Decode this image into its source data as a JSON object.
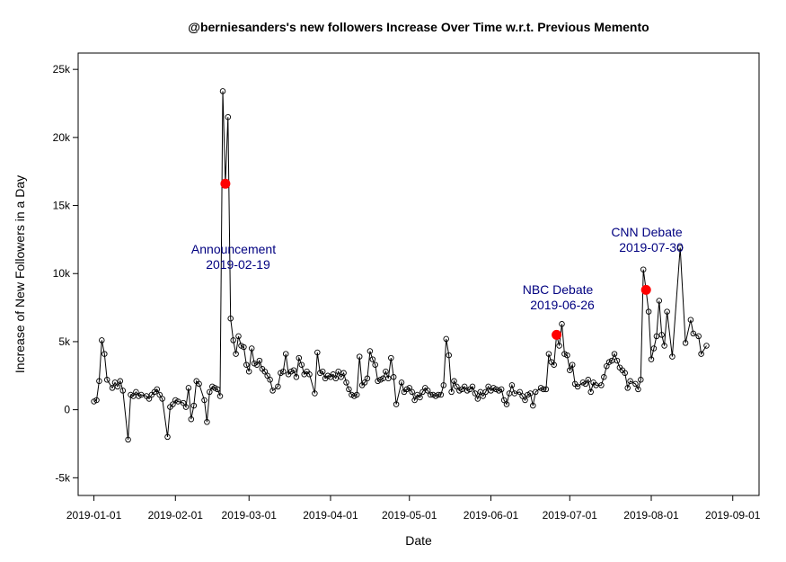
{
  "chart_data": {
    "type": "line",
    "title": "@berniesanders's new followers Increase Over Time w.r.t. Previous Memento",
    "xlabel": "Date",
    "ylabel": "Increase of New Followers in a Day",
    "x_tick_labels": [
      "2019-01-01",
      "2019-02-01",
      "2019-03-01",
      "2019-04-01",
      "2019-05-01",
      "2019-06-01",
      "2019-07-01",
      "2019-08-01",
      "2019-09-01"
    ],
    "y_tick_values": [
      -5000,
      0,
      5000,
      10000,
      15000,
      20000,
      25000
    ],
    "y_tick_labels": [
      "-5k",
      "0",
      "5k",
      "10k",
      "15k",
      "20k",
      "25k"
    ],
    "xlim": [
      "2018-12-26",
      "2019-09-11"
    ],
    "ylim": [
      -6300,
      26200
    ],
    "grid": false,
    "series": [
      {
        "marker": "open-circle",
        "line_color": "#000000",
        "points": [
          {
            "x": "2019-01-01",
            "y": 600
          },
          {
            "x": "2019-01-02",
            "y": 700
          },
          {
            "x": "2019-01-03",
            "y": 2100
          },
          {
            "x": "2019-01-04",
            "y": 5100
          },
          {
            "x": "2019-01-05",
            "y": 4100
          },
          {
            "x": "2019-01-06",
            "y": 2200
          },
          {
            "x": "2019-01-08",
            "y": 1600
          },
          {
            "x": "2019-01-09",
            "y": 2000
          },
          {
            "x": "2019-01-10",
            "y": 1700
          },
          {
            "x": "2019-01-11",
            "y": 2100
          },
          {
            "x": "2019-01-12",
            "y": 1400
          },
          {
            "x": "2019-01-14",
            "y": -2200
          },
          {
            "x": "2019-01-15",
            "y": 1100
          },
          {
            "x": "2019-01-16",
            "y": 1000
          },
          {
            "x": "2019-01-17",
            "y": 1300
          },
          {
            "x": "2019-01-18",
            "y": 1000
          },
          {
            "x": "2019-01-19",
            "y": 1100
          },
          {
            "x": "2019-01-21",
            "y": 1000
          },
          {
            "x": "2019-01-22",
            "y": 800
          },
          {
            "x": "2019-01-23",
            "y": 1100
          },
          {
            "x": "2019-01-24",
            "y": 1300
          },
          {
            "x": "2019-01-25",
            "y": 1500
          },
          {
            "x": "2019-01-26",
            "y": 1100
          },
          {
            "x": "2019-01-27",
            "y": 800
          },
          {
            "x": "2019-01-29",
            "y": -2000
          },
          {
            "x": "2019-01-30",
            "y": 200
          },
          {
            "x": "2019-01-31",
            "y": 400
          },
          {
            "x": "2019-02-01",
            "y": 700
          },
          {
            "x": "2019-02-02",
            "y": 600
          },
          {
            "x": "2019-02-04",
            "y": 500
          },
          {
            "x": "2019-02-05",
            "y": 200
          },
          {
            "x": "2019-02-06",
            "y": 1600
          },
          {
            "x": "2019-02-07",
            "y": -700
          },
          {
            "x": "2019-02-08",
            "y": 300
          },
          {
            "x": "2019-02-09",
            "y": 2100
          },
          {
            "x": "2019-02-10",
            "y": 1900
          },
          {
            "x": "2019-02-12",
            "y": 700
          },
          {
            "x": "2019-02-13",
            "y": -900
          },
          {
            "x": "2019-02-14",
            "y": 1300
          },
          {
            "x": "2019-02-15",
            "y": 1700
          },
          {
            "x": "2019-02-16",
            "y": 1600
          },
          {
            "x": "2019-02-17",
            "y": 1500
          },
          {
            "x": "2019-02-18",
            "y": 1000
          },
          {
            "x": "2019-02-19",
            "y": 23400
          },
          {
            "x": "2019-02-20",
            "y": 16600
          },
          {
            "x": "2019-02-21",
            "y": 21500
          },
          {
            "x": "2019-02-22",
            "y": 6700
          },
          {
            "x": "2019-02-23",
            "y": 5100
          },
          {
            "x": "2019-02-24",
            "y": 4100
          },
          {
            "x": "2019-02-25",
            "y": 5400
          },
          {
            "x": "2019-02-26",
            "y": 4700
          },
          {
            "x": "2019-02-27",
            "y": 4600
          },
          {
            "x": "2019-02-28",
            "y": 3300
          },
          {
            "x": "2019-03-01",
            "y": 2800
          },
          {
            "x": "2019-03-02",
            "y": 4500
          },
          {
            "x": "2019-03-03",
            "y": 3400
          },
          {
            "x": "2019-03-04",
            "y": 3300
          },
          {
            "x": "2019-03-05",
            "y": 3600
          },
          {
            "x": "2019-03-06",
            "y": 3000
          },
          {
            "x": "2019-03-07",
            "y": 2800
          },
          {
            "x": "2019-03-08",
            "y": 2500
          },
          {
            "x": "2019-03-09",
            "y": 2200
          },
          {
            "x": "2019-03-10",
            "y": 1400
          },
          {
            "x": "2019-03-12",
            "y": 1700
          },
          {
            "x": "2019-03-13",
            "y": 2700
          },
          {
            "x": "2019-03-14",
            "y": 2800
          },
          {
            "x": "2019-03-15",
            "y": 4100
          },
          {
            "x": "2019-03-16",
            "y": 2600
          },
          {
            "x": "2019-03-17",
            "y": 2800
          },
          {
            "x": "2019-03-18",
            "y": 2900
          },
          {
            "x": "2019-03-19",
            "y": 2400
          },
          {
            "x": "2019-03-20",
            "y": 3800
          },
          {
            "x": "2019-03-21",
            "y": 3300
          },
          {
            "x": "2019-03-22",
            "y": 2600
          },
          {
            "x": "2019-03-23",
            "y": 2800
          },
          {
            "x": "2019-03-24",
            "y": 2600
          },
          {
            "x": "2019-03-26",
            "y": 1200
          },
          {
            "x": "2019-03-27",
            "y": 4200
          },
          {
            "x": "2019-03-28",
            "y": 2700
          },
          {
            "x": "2019-03-29",
            "y": 2800
          },
          {
            "x": "2019-03-30",
            "y": 2300
          },
          {
            "x": "2019-03-31",
            "y": 2500
          },
          {
            "x": "2019-04-01",
            "y": 2400
          },
          {
            "x": "2019-04-02",
            "y": 2600
          },
          {
            "x": "2019-04-03",
            "y": 2300
          },
          {
            "x": "2019-04-04",
            "y": 2800
          },
          {
            "x": "2019-04-05",
            "y": 2400
          },
          {
            "x": "2019-04-06",
            "y": 2700
          },
          {
            "x": "2019-04-07",
            "y": 2000
          },
          {
            "x": "2019-04-08",
            "y": 1500
          },
          {
            "x": "2019-04-09",
            "y": 1100
          },
          {
            "x": "2019-04-10",
            "y": 1000
          },
          {
            "x": "2019-04-11",
            "y": 1100
          },
          {
            "x": "2019-04-12",
            "y": 3900
          },
          {
            "x": "2019-04-13",
            "y": 1800
          },
          {
            "x": "2019-04-14",
            "y": 2000
          },
          {
            "x": "2019-04-15",
            "y": 2300
          },
          {
            "x": "2019-04-16",
            "y": 4300
          },
          {
            "x": "2019-04-17",
            "y": 3700
          },
          {
            "x": "2019-04-18",
            "y": 3300
          },
          {
            "x": "2019-04-19",
            "y": 2100
          },
          {
            "x": "2019-04-20",
            "y": 2200
          },
          {
            "x": "2019-04-21",
            "y": 2300
          },
          {
            "x": "2019-04-22",
            "y": 2800
          },
          {
            "x": "2019-04-23",
            "y": 2300
          },
          {
            "x": "2019-04-24",
            "y": 3800
          },
          {
            "x": "2019-04-25",
            "y": 2400
          },
          {
            "x": "2019-04-26",
            "y": 400
          },
          {
            "x": "2019-04-28",
            "y": 2000
          },
          {
            "x": "2019-04-29",
            "y": 1300
          },
          {
            "x": "2019-04-30",
            "y": 1500
          },
          {
            "x": "2019-05-01",
            "y": 1600
          },
          {
            "x": "2019-05-02",
            "y": 1300
          },
          {
            "x": "2019-05-03",
            "y": 700
          },
          {
            "x": "2019-05-04",
            "y": 1100
          },
          {
            "x": "2019-05-05",
            "y": 900
          },
          {
            "x": "2019-05-06",
            "y": 1300
          },
          {
            "x": "2019-05-07",
            "y": 1600
          },
          {
            "x": "2019-05-08",
            "y": 1400
          },
          {
            "x": "2019-05-09",
            "y": 1100
          },
          {
            "x": "2019-05-10",
            "y": 1100
          },
          {
            "x": "2019-05-11",
            "y": 1000
          },
          {
            "x": "2019-05-12",
            "y": 1100
          },
          {
            "x": "2019-05-13",
            "y": 1100
          },
          {
            "x": "2019-05-14",
            "y": 1800
          },
          {
            "x": "2019-05-15",
            "y": 5200
          },
          {
            "x": "2019-05-16",
            "y": 4000
          },
          {
            "x": "2019-05-17",
            "y": 1300
          },
          {
            "x": "2019-05-18",
            "y": 2100
          },
          {
            "x": "2019-05-19",
            "y": 1700
          },
          {
            "x": "2019-05-20",
            "y": 1400
          },
          {
            "x": "2019-05-21",
            "y": 1500
          },
          {
            "x": "2019-05-22",
            "y": 1700
          },
          {
            "x": "2019-05-23",
            "y": 1400
          },
          {
            "x": "2019-05-24",
            "y": 1500
          },
          {
            "x": "2019-05-25",
            "y": 1700
          },
          {
            "x": "2019-05-26",
            "y": 1200
          },
          {
            "x": "2019-05-27",
            "y": 800
          },
          {
            "x": "2019-05-28",
            "y": 1300
          },
          {
            "x": "2019-05-29",
            "y": 1000
          },
          {
            "x": "2019-05-30",
            "y": 1300
          },
          {
            "x": "2019-05-31",
            "y": 1700
          },
          {
            "x": "2019-06-01",
            "y": 1400
          },
          {
            "x": "2019-06-02",
            "y": 1600
          },
          {
            "x": "2019-06-03",
            "y": 1500
          },
          {
            "x": "2019-06-04",
            "y": 1400
          },
          {
            "x": "2019-06-05",
            "y": 1500
          },
          {
            "x": "2019-06-06",
            "y": 700
          },
          {
            "x": "2019-06-07",
            "y": 400
          },
          {
            "x": "2019-06-08",
            "y": 1200
          },
          {
            "x": "2019-06-09",
            "y": 1800
          },
          {
            "x": "2019-06-10",
            "y": 1200
          },
          {
            "x": "2019-06-12",
            "y": 1300
          },
          {
            "x": "2019-06-13",
            "y": 1000
          },
          {
            "x": "2019-06-14",
            "y": 700
          },
          {
            "x": "2019-06-15",
            "y": 1100
          },
          {
            "x": "2019-06-16",
            "y": 1200
          },
          {
            "x": "2019-06-17",
            "y": 300
          },
          {
            "x": "2019-06-18",
            "y": 1300
          },
          {
            "x": "2019-06-20",
            "y": 1600
          },
          {
            "x": "2019-06-21",
            "y": 1500
          },
          {
            "x": "2019-06-22",
            "y": 1500
          },
          {
            "x": "2019-06-23",
            "y": 4100
          },
          {
            "x": "2019-06-24",
            "y": 3500
          },
          {
            "x": "2019-06-25",
            "y": 3300
          },
          {
            "x": "2019-06-26",
            "y": 5500
          },
          {
            "x": "2019-06-27",
            "y": 4700
          },
          {
            "x": "2019-06-28",
            "y": 6300
          },
          {
            "x": "2019-06-29",
            "y": 4100
          },
          {
            "x": "2019-06-30",
            "y": 4000
          },
          {
            "x": "2019-07-01",
            "y": 2900
          },
          {
            "x": "2019-07-02",
            "y": 3300
          },
          {
            "x": "2019-07-03",
            "y": 1900
          },
          {
            "x": "2019-07-04",
            "y": 1700
          },
          {
            "x": "2019-07-06",
            "y": 2000
          },
          {
            "x": "2019-07-07",
            "y": 1900
          },
          {
            "x": "2019-07-08",
            "y": 2200
          },
          {
            "x": "2019-07-09",
            "y": 1300
          },
          {
            "x": "2019-07-10",
            "y": 2000
          },
          {
            "x": "2019-07-11",
            "y": 1800
          },
          {
            "x": "2019-07-13",
            "y": 1800
          },
          {
            "x": "2019-07-14",
            "y": 2400
          },
          {
            "x": "2019-07-15",
            "y": 3200
          },
          {
            "x": "2019-07-16",
            "y": 3500
          },
          {
            "x": "2019-07-17",
            "y": 3600
          },
          {
            "x": "2019-07-18",
            "y": 4100
          },
          {
            "x": "2019-07-19",
            "y": 3600
          },
          {
            "x": "2019-07-20",
            "y": 3100
          },
          {
            "x": "2019-07-21",
            "y": 2900
          },
          {
            "x": "2019-07-22",
            "y": 2700
          },
          {
            "x": "2019-07-23",
            "y": 1600
          },
          {
            "x": "2019-07-24",
            "y": 2100
          },
          {
            "x": "2019-07-26",
            "y": 1900
          },
          {
            "x": "2019-07-27",
            "y": 1500
          },
          {
            "x": "2019-07-28",
            "y": 2200
          },
          {
            "x": "2019-07-29",
            "y": 10300
          },
          {
            "x": "2019-07-30",
            "y": 8800
          },
          {
            "x": "2019-07-31",
            "y": 7200
          },
          {
            "x": "2019-08-01",
            "y": 3700
          },
          {
            "x": "2019-08-02",
            "y": 4500
          },
          {
            "x": "2019-08-03",
            "y": 5400
          },
          {
            "x": "2019-08-04",
            "y": 8000
          },
          {
            "x": "2019-08-05",
            "y": 5500
          },
          {
            "x": "2019-08-06",
            "y": 4700
          },
          {
            "x": "2019-08-07",
            "y": 7200
          },
          {
            "x": "2019-08-09",
            "y": 3900
          },
          {
            "x": "2019-08-12",
            "y": 11900
          },
          {
            "x": "2019-08-14",
            "y": 4900
          },
          {
            "x": "2019-08-16",
            "y": 6600
          },
          {
            "x": "2019-08-17",
            "y": 5600
          },
          {
            "x": "2019-08-19",
            "y": 5400
          },
          {
            "x": "2019-08-20",
            "y": 4100
          },
          {
            "x": "2019-08-22",
            "y": 4700
          }
        ]
      }
    ],
    "highlights": [
      {
        "x": "2019-02-20",
        "y": 16600,
        "color": "#ff0000"
      },
      {
        "x": "2019-06-26",
        "y": 5500,
        "color": "#ff0000"
      },
      {
        "x": "2019-07-30",
        "y": 8800,
        "color": "#ff0000"
      }
    ],
    "annotations": [
      {
        "lines": [
          "Announcement",
          "2019-02-19"
        ],
        "color": "#000080",
        "position": "below-left of spike"
      },
      {
        "lines": [
          "NBC Debate",
          "2019-06-26"
        ],
        "color": "#000080",
        "position": "above-left of point"
      },
      {
        "lines": [
          "CNN Debate",
          "2019-07-30"
        ],
        "color": "#000080",
        "position": "above of point"
      }
    ]
  }
}
